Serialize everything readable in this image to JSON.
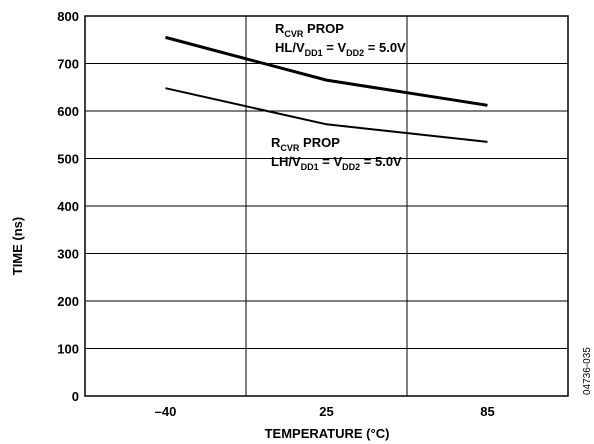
{
  "chart_data": {
    "type": "line",
    "xlabel": "TEMPERATURE (°C)",
    "ylabel": "TIME (ns)",
    "x": [
      "–40",
      "25",
      "85"
    ],
    "ylim": [
      0,
      800
    ],
    "yticks": [
      "0",
      "100",
      "200",
      "300",
      "400",
      "500",
      "600",
      "700",
      "800"
    ],
    "grid": true,
    "series": [
      {
        "values": [
          755,
          665,
          612
        ]
      },
      {
        "values": [
          648,
          572,
          535
        ]
      }
    ],
    "annotations": [
      {
        "line1": {
          "r": "R",
          "sub": "CVR",
          "rest": " PROP"
        },
        "line2": {
          "a": "HL/V",
          "sub1": "DD1",
          "b": " = V",
          "sub2": "DD2",
          "c": " = 5.0V"
        }
      },
      {
        "line1": {
          "r": "R",
          "sub": "CVR",
          "rest": " PROP"
        },
        "line2": {
          "a": "LH/V",
          "sub1": "DD1",
          "b": " = V",
          "sub2": "DD2",
          "c": " = 5.0V"
        }
      }
    ],
    "figure_code": "04736-035"
  }
}
